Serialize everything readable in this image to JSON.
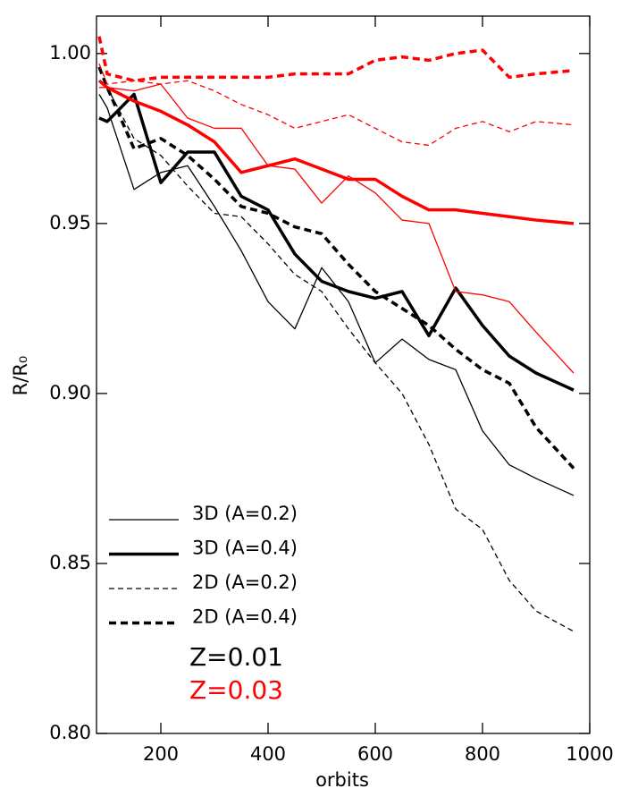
{
  "chart_data": {
    "type": "line",
    "xlabel": "orbits",
    "ylabel": "R/R₀",
    "x": [
      85,
      100,
      150,
      200,
      250,
      300,
      350,
      400,
      450,
      500,
      550,
      600,
      650,
      700,
      750,
      800,
      850,
      900,
      970
    ],
    "xlim": [
      80,
      1000
    ],
    "xticks": [
      200,
      400,
      600,
      800,
      1000
    ],
    "ylim": [
      0.8,
      1.011
    ],
    "yticks": [
      {
        "value": 0.8,
        "label": "0.80"
      },
      {
        "value": 0.85,
        "label": "0.85"
      },
      {
        "value": 0.9,
        "label": "0.90"
      },
      {
        "value": 0.95,
        "label": "0.95"
      },
      {
        "value": 1.0,
        "label": "1.00"
      }
    ],
    "series": [
      {
        "color": "#000000",
        "width": 1.3,
        "dashed": false,
        "values": [
          0.988,
          0.984,
          0.96,
          0.965,
          0.967,
          0.955,
          0.942,
          0.927,
          0.919,
          0.937,
          0.927,
          0.909,
          0.916,
          0.91,
          0.907,
          0.889,
          0.879,
          0.875,
          0.87
        ]
      },
      {
        "color": "#000000",
        "width": 3.5,
        "dashed": false,
        "values": [
          0.981,
          0.98,
          0.988,
          0.962,
          0.971,
          0.971,
          0.958,
          0.954,
          0.941,
          0.933,
          0.93,
          0.928,
          0.93,
          0.917,
          0.931,
          0.92,
          0.911,
          0.906,
          0.901
        ]
      },
      {
        "color": "#000000",
        "width": 1.3,
        "dashed": true,
        "values": [
          0.992,
          0.99,
          0.975,
          0.97,
          0.961,
          0.953,
          0.952,
          0.944,
          0.935,
          0.93,
          0.919,
          0.909,
          0.9,
          0.885,
          0.866,
          0.86,
          0.845,
          0.836,
          0.83
        ]
      },
      {
        "color": "#000000",
        "width": 3.5,
        "dashed": true,
        "values": [
          0.996,
          0.99,
          0.972,
          0.975,
          0.97,
          0.963,
          0.955,
          0.953,
          0.949,
          0.947,
          0.938,
          0.93,
          0.925,
          0.92,
          0.913,
          0.907,
          0.903,
          0.89,
          0.878
        ]
      },
      {
        "color": "#ff0000",
        "width": 1.3,
        "dashed": false,
        "values": [
          0.99,
          0.99,
          0.989,
          0.991,
          0.981,
          0.978,
          0.978,
          0.967,
          0.966,
          0.956,
          0.964,
          0.959,
          0.951,
          0.95,
          0.93,
          0.929,
          0.927,
          0.918,
          0.906
        ]
      },
      {
        "color": "#ff0000",
        "width": 3.5,
        "dashed": false,
        "values": [
          0.992,
          0.99,
          0.986,
          0.983,
          0.979,
          0.974,
          0.965,
          0.967,
          0.969,
          0.966,
          0.963,
          0.963,
          0.958,
          0.954,
          0.954,
          0.953,
          0.952,
          0.951,
          0.95
        ]
      },
      {
        "color": "#ff0000",
        "width": 1.3,
        "dashed": true,
        "values": [
          0.997,
          0.991,
          0.992,
          0.991,
          0.992,
          0.989,
          0.985,
          0.982,
          0.978,
          0.98,
          0.982,
          0.978,
          0.974,
          0.973,
          0.978,
          0.98,
          0.977,
          0.98,
          0.979
        ]
      },
      {
        "color": "#ff0000",
        "width": 3.5,
        "dashed": true,
        "values": [
          1.005,
          0.994,
          0.992,
          0.993,
          0.993,
          0.993,
          0.993,
          0.993,
          0.994,
          0.994,
          0.994,
          0.998,
          0.999,
          0.998,
          1.0,
          1.001,
          0.993,
          0.994,
          0.995
        ]
      }
    ],
    "legend": [
      {
        "label": "3D (A=0.2)",
        "width": 1.3,
        "dashed": false
      },
      {
        "label": "3D (A=0.4)",
        "width": 3.5,
        "dashed": false
      },
      {
        "label": "2D (A=0.2)",
        "width": 1.3,
        "dashed": true
      },
      {
        "label": "2D (A=0.4)",
        "width": 3.5,
        "dashed": true
      }
    ],
    "annotations": [
      {
        "text": "Z=0.01",
        "color": "#000000"
      },
      {
        "text": "Z=0.03",
        "color": "#ff0000"
      }
    ]
  }
}
